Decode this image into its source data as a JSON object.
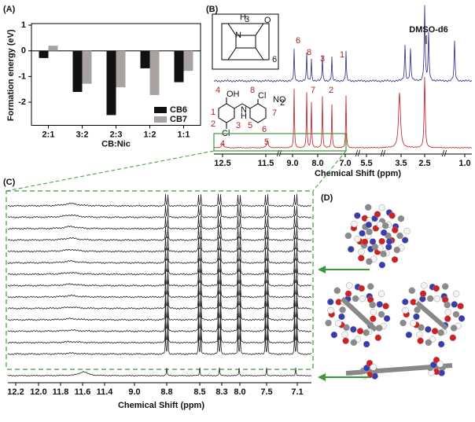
{
  "panel_labels": [
    "(A)",
    "(B)",
    "(C)",
    "(D)"
  ],
  "chart_data": {
    "type": "bar",
    "ylabel": "Formation energy (eV)",
    "xlabel": "CB:Nic",
    "categories": [
      "2:1",
      "3:2",
      "2:3",
      "1:2",
      "1:1"
    ],
    "series": [
      {
        "name": "CB6",
        "color": "#111111",
        "values": [
          -0.28,
          -1.6,
          -2.5,
          -0.68,
          -1.22
        ]
      },
      {
        "name": "CB7",
        "color": "#a8a3a0",
        "values": [
          0.2,
          -1.28,
          -1.42,
          -1.72,
          -0.78
        ]
      }
    ],
    "ylim": [
      -2.9,
      1
    ],
    "yticks": [
      1,
      0,
      -1,
      -2
    ],
    "legend": "lower right"
  },
  "spectrum_b": {
    "xlabel": "Chemical Shift (ppm)",
    "solvent": "DMSO-d6",
    "ticks": [
      "12.5",
      "11.5",
      "9.0",
      "8.0",
      "7.0",
      "5.5",
      "3.5",
      "2.5",
      "1.0"
    ],
    "peak_labels": [
      "6",
      "8",
      "7",
      "3",
      "2",
      "1",
      "4",
      "5"
    ],
    "cb_labels": [
      "H",
      "3",
      "N",
      "O",
      "6"
    ],
    "nic_labels": [
      "4",
      "OH",
      "1",
      "2",
      "3",
      "Cl",
      "8",
      "Cl",
      "NO",
      "2",
      "7",
      "6",
      "H",
      "N",
      "5"
    ]
  },
  "spectrum_c": {
    "xlabel": "Chemical Shift (ppm)",
    "ticks": [
      "12.2",
      "12.0",
      "11.8",
      "11.6",
      "11.4",
      "9.0",
      "8.8",
      "8.5",
      "8.3",
      "8.0",
      "7.5",
      "7.1"
    ]
  }
}
